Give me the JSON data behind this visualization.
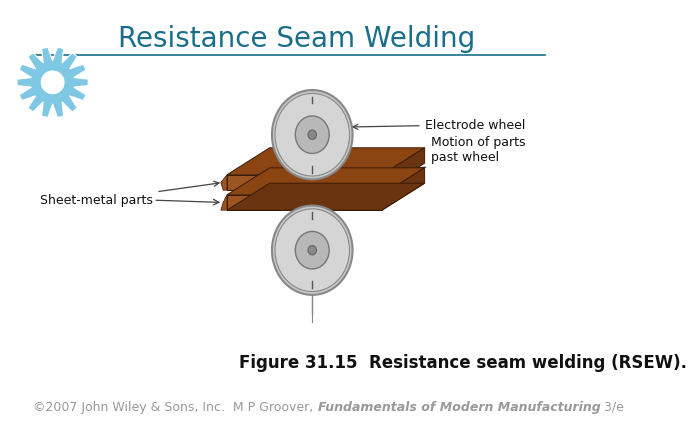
{
  "title": "Resistance Seam Welding",
  "title_color": "#1a6e8a",
  "title_fontsize": 20,
  "figure_caption": "Figure 31.15  Resistance seam welding (RSEW).",
  "caption_fontsize": 12,
  "caption_color": "#111111",
  "footer_normal": "©2007 John Wiley & Sons, Inc.  M P Groover, ",
  "footer_italic": "Fundamentals of Modern Manufacturing",
  "footer_end": " 3/e",
  "footer_fontsize": 9,
  "footer_color": "#999999",
  "bg_color": "#ffffff",
  "line_color": "#1a6e8a",
  "gear_color": "#7ec8e3",
  "plate_color_top": "#8B4513",
  "plate_color_side": "#6B3410",
  "plate_color_light": "#A0522D",
  "wheel_color": "#c8c8c8",
  "wheel_edge": "#888888",
  "wheel_hub_color": "#b0b0b0",
  "label_electrode": "Electrode wheel",
  "label_sheet": "Sheet-metal parts",
  "label_motion": "Motion of parts\npast wheel"
}
